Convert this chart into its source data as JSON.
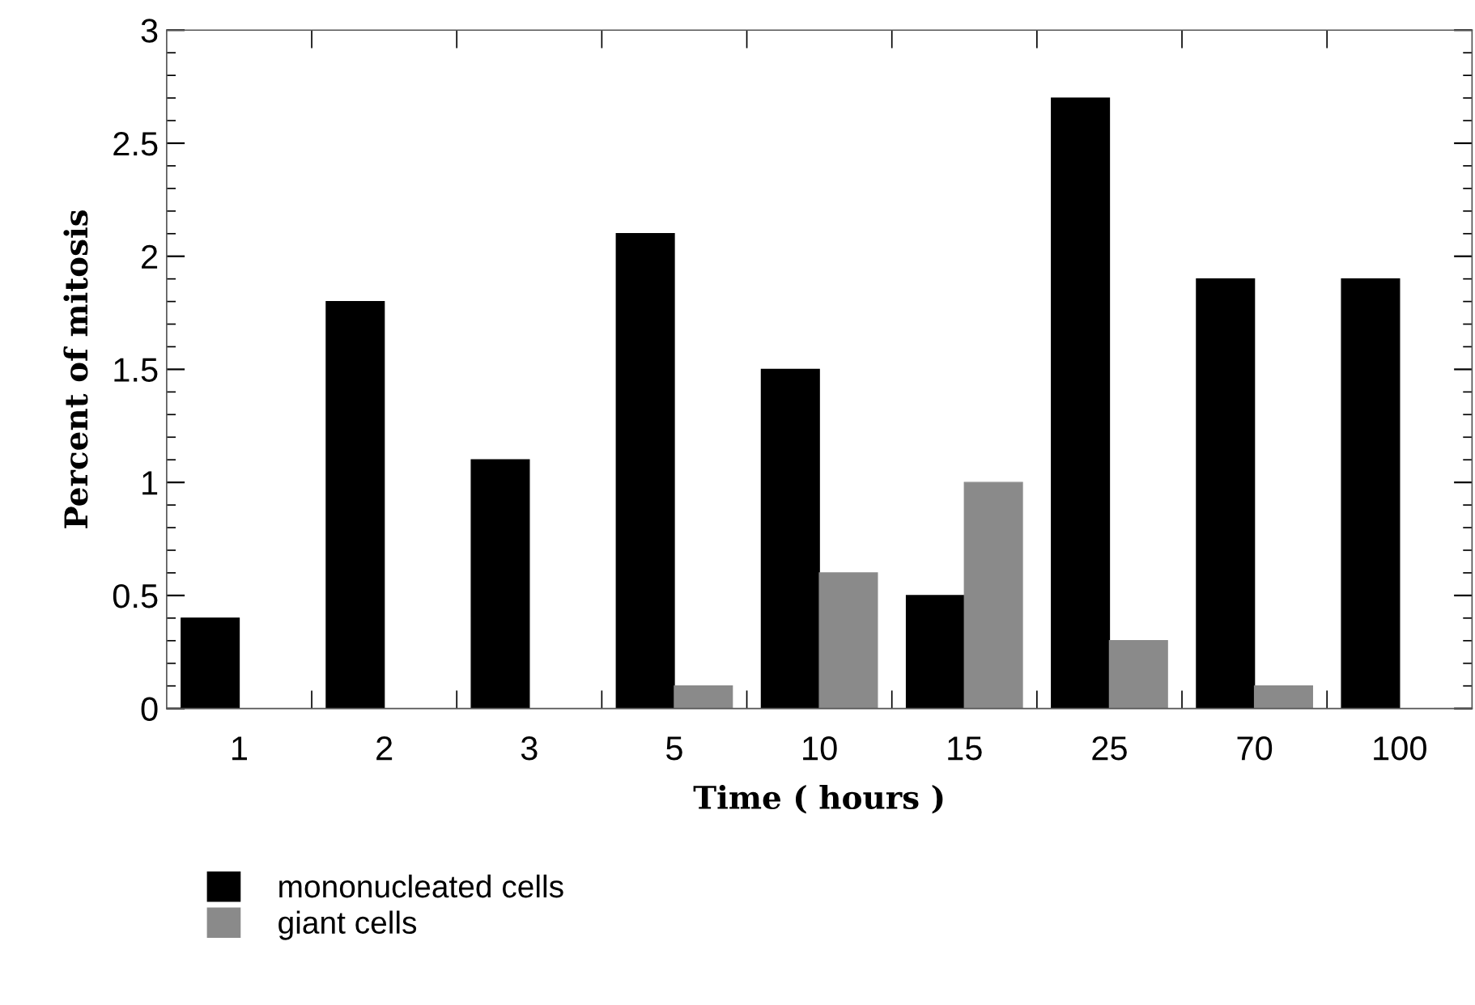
{
  "chart_data": {
    "type": "bar",
    "xlabel": "Time ( hours )",
    "ylabel": "Percent of mitosis",
    "categories": [
      "1",
      "2",
      "3",
      "5",
      "10",
      "15",
      "25",
      "70",
      "100"
    ],
    "series": [
      {
        "name": "mononucleated cells",
        "color": "#000000",
        "values": [
          0.4,
          1.8,
          1.1,
          2.1,
          1.5,
          0.5,
          2.7,
          1.9,
          1.9
        ]
      },
      {
        "name": "giant cells",
        "color": "#8a8a8a",
        "values": [
          null,
          null,
          null,
          0.1,
          0.6,
          1.0,
          0.3,
          0.1,
          null
        ]
      }
    ],
    "ylim": [
      0,
      3
    ],
    "yticks": [
      0,
      0.5,
      1,
      1.5,
      2,
      2.5,
      3
    ],
    "grid": false,
    "legend": "bottom left"
  }
}
